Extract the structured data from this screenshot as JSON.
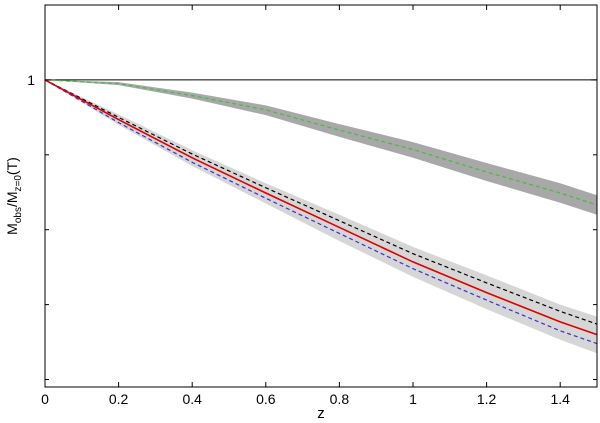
{
  "chart_data": {
    "type": "line",
    "x": [
      0,
      0.2,
      0.4,
      0.6,
      0.8,
      1.0,
      1.2,
      1.4,
      1.5
    ],
    "xlim": [
      0,
      1.5
    ],
    "xticks": [
      0,
      0.2,
      0.4,
      0.6,
      0.8,
      1,
      1.2,
      1.4
    ],
    "ylim": [
      0.59,
      1.1
    ],
    "yticks": [
      1
    ],
    "minor_yticks": [
      0.9,
      0.8,
      0.7,
      0.6
    ],
    "xlabel": "z",
    "ylabel_parts": [
      "M",
      "obs",
      "/M",
      "z=0",
      "(T)"
    ],
    "hline": 1,
    "bands": [
      {
        "color": "#999999",
        "opacity": 0.85,
        "lower": [
          1,
          0.993,
          0.975,
          0.953,
          0.924,
          0.896,
          0.865,
          0.836,
          0.82
        ],
        "upper": [
          1,
          0.997,
          0.983,
          0.966,
          0.941,
          0.917,
          0.889,
          0.862,
          0.846
        ]
      },
      {
        "color": "#bbbbbb",
        "opacity": 0.6,
        "lower": [
          1,
          0.94,
          0.885,
          0.835,
          0.785,
          0.737,
          0.694,
          0.653,
          0.635
        ],
        "upper": [
          1,
          0.954,
          0.906,
          0.862,
          0.82,
          0.777,
          0.739,
          0.7,
          0.684
        ]
      }
    ],
    "series": [
      {
        "color": "#44bb44",
        "dash": true,
        "values": [
          1,
          0.995,
          0.979,
          0.96,
          0.933,
          0.907,
          0.877,
          0.849,
          0.833
        ]
      },
      {
        "color": "#000000",
        "dash": true,
        "values": [
          1,
          0.95,
          0.901,
          0.856,
          0.812,
          0.768,
          0.729,
          0.691,
          0.674
        ]
      },
      {
        "color": "#3333cc",
        "dash": true,
        "values": [
          1,
          0.943,
          0.89,
          0.842,
          0.795,
          0.748,
          0.706,
          0.665,
          0.648
        ]
      },
      {
        "color": "#dd0000",
        "dash": false,
        "values": [
          1,
          0.947,
          0.896,
          0.849,
          0.803,
          0.757,
          0.716,
          0.677,
          0.66
        ]
      }
    ]
  }
}
